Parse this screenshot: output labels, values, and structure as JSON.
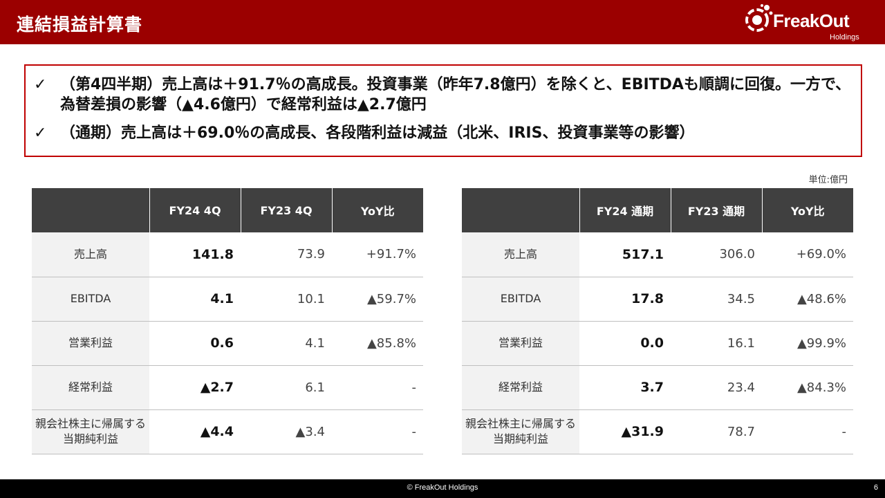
{
  "header": {
    "title": "連結損益計算書",
    "brand_color": "#9b0000",
    "logo": {
      "name": "FreakOut",
      "sub": "Holdings"
    }
  },
  "summary": {
    "border_color": "#c00000",
    "bullets": [
      {
        "mark": "✓",
        "text": "（第4四半期）売上高は＋91.7％の高成長。投資事業（昨年7.8億円）を除くと、EBITDAも順調に回復。一方で、為替差損の影響（▲4.6億円）で経常利益は▲2.7億円"
      },
      {
        "mark": "✓",
        "text": "（通期）売上高は＋69.0％の高成長、各段階利益は減益（北米、IRIS、投資事業等の影響）"
      }
    ]
  },
  "unit_label": "単位:億円",
  "tables": {
    "left": {
      "headers": [
        "",
        "FY24 4Q",
        "FY23 4Q",
        "YoY比"
      ],
      "rows": [
        {
          "label": "売上高",
          "current": "141.8",
          "previous": "73.9",
          "yoy": "+91.7%"
        },
        {
          "label": "EBITDA",
          "current": "4.1",
          "previous": "10.1",
          "yoy": "▲59.7%"
        },
        {
          "label": "営業利益",
          "current": "0.6",
          "previous": "4.1",
          "yoy": "▲85.8%"
        },
        {
          "label": "経常利益",
          "current": "▲2.7",
          "previous": "6.1",
          "yoy": "-"
        },
        {
          "label": "親会社株主に帰属する当期純利益",
          "current": "▲4.4",
          "previous": "▲3.4",
          "yoy": "-"
        }
      ]
    },
    "right": {
      "headers": [
        "",
        "FY24 通期",
        "FY23 通期",
        "YoY比"
      ],
      "rows": [
        {
          "label": "売上高",
          "current": "517.1",
          "previous": "306.0",
          "yoy": "+69.0%"
        },
        {
          "label": "EBITDA",
          "current": "17.8",
          "previous": "34.5",
          "yoy": "▲48.6%"
        },
        {
          "label": "営業利益",
          "current": "0.0",
          "previous": "16.1",
          "yoy": "▲99.9%"
        },
        {
          "label": "経常利益",
          "current": "3.7",
          "previous": "23.4",
          "yoy": "▲84.3%"
        },
        {
          "label": "親会社株主に帰属する当期純利益",
          "current": "▲31.9",
          "previous": "78.7",
          "yoy": "-"
        }
      ]
    }
  },
  "footer": {
    "copyright": "© FreakOut Holdings",
    "page": "6"
  }
}
